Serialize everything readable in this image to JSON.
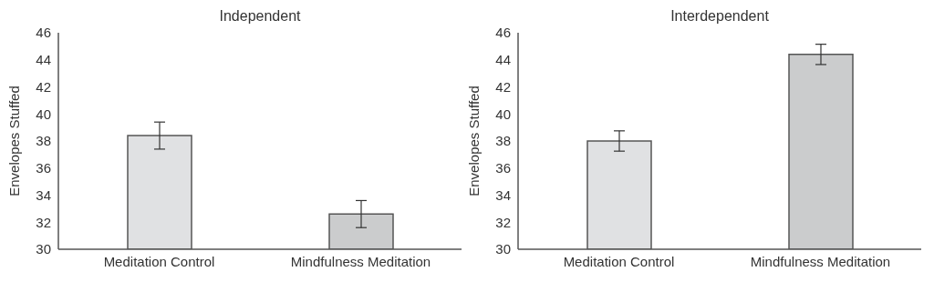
{
  "chart_data": [
    {
      "type": "bar",
      "title": "Independent",
      "ylabel": "Envelopes Stuffed",
      "categories": [
        "Meditation Control",
        "Mindfulness Meditation"
      ],
      "values": [
        38.4,
        32.6
      ],
      "errors": [
        1.0,
        1.0
      ],
      "colors": [
        "#e0e1e3",
        "#cbcccd"
      ],
      "ylim": [
        30,
        46
      ],
      "yticks": [
        30,
        32,
        34,
        36,
        38,
        40,
        42,
        44,
        46
      ],
      "grid": false,
      "legend": false
    },
    {
      "type": "bar",
      "title": "Interdependent",
      "ylabel": "Envelopes Stuffed",
      "categories": [
        "Meditation Control",
        "Mindfulness Meditation"
      ],
      "values": [
        38.0,
        44.4
      ],
      "errors": [
        0.75,
        0.75
      ],
      "colors": [
        "#e0e1e3",
        "#cbcccd"
      ],
      "ylim": [
        30,
        46
      ],
      "yticks": [
        30,
        32,
        34,
        36,
        38,
        40,
        42,
        44,
        46
      ],
      "grid": false,
      "legend": false
    }
  ]
}
